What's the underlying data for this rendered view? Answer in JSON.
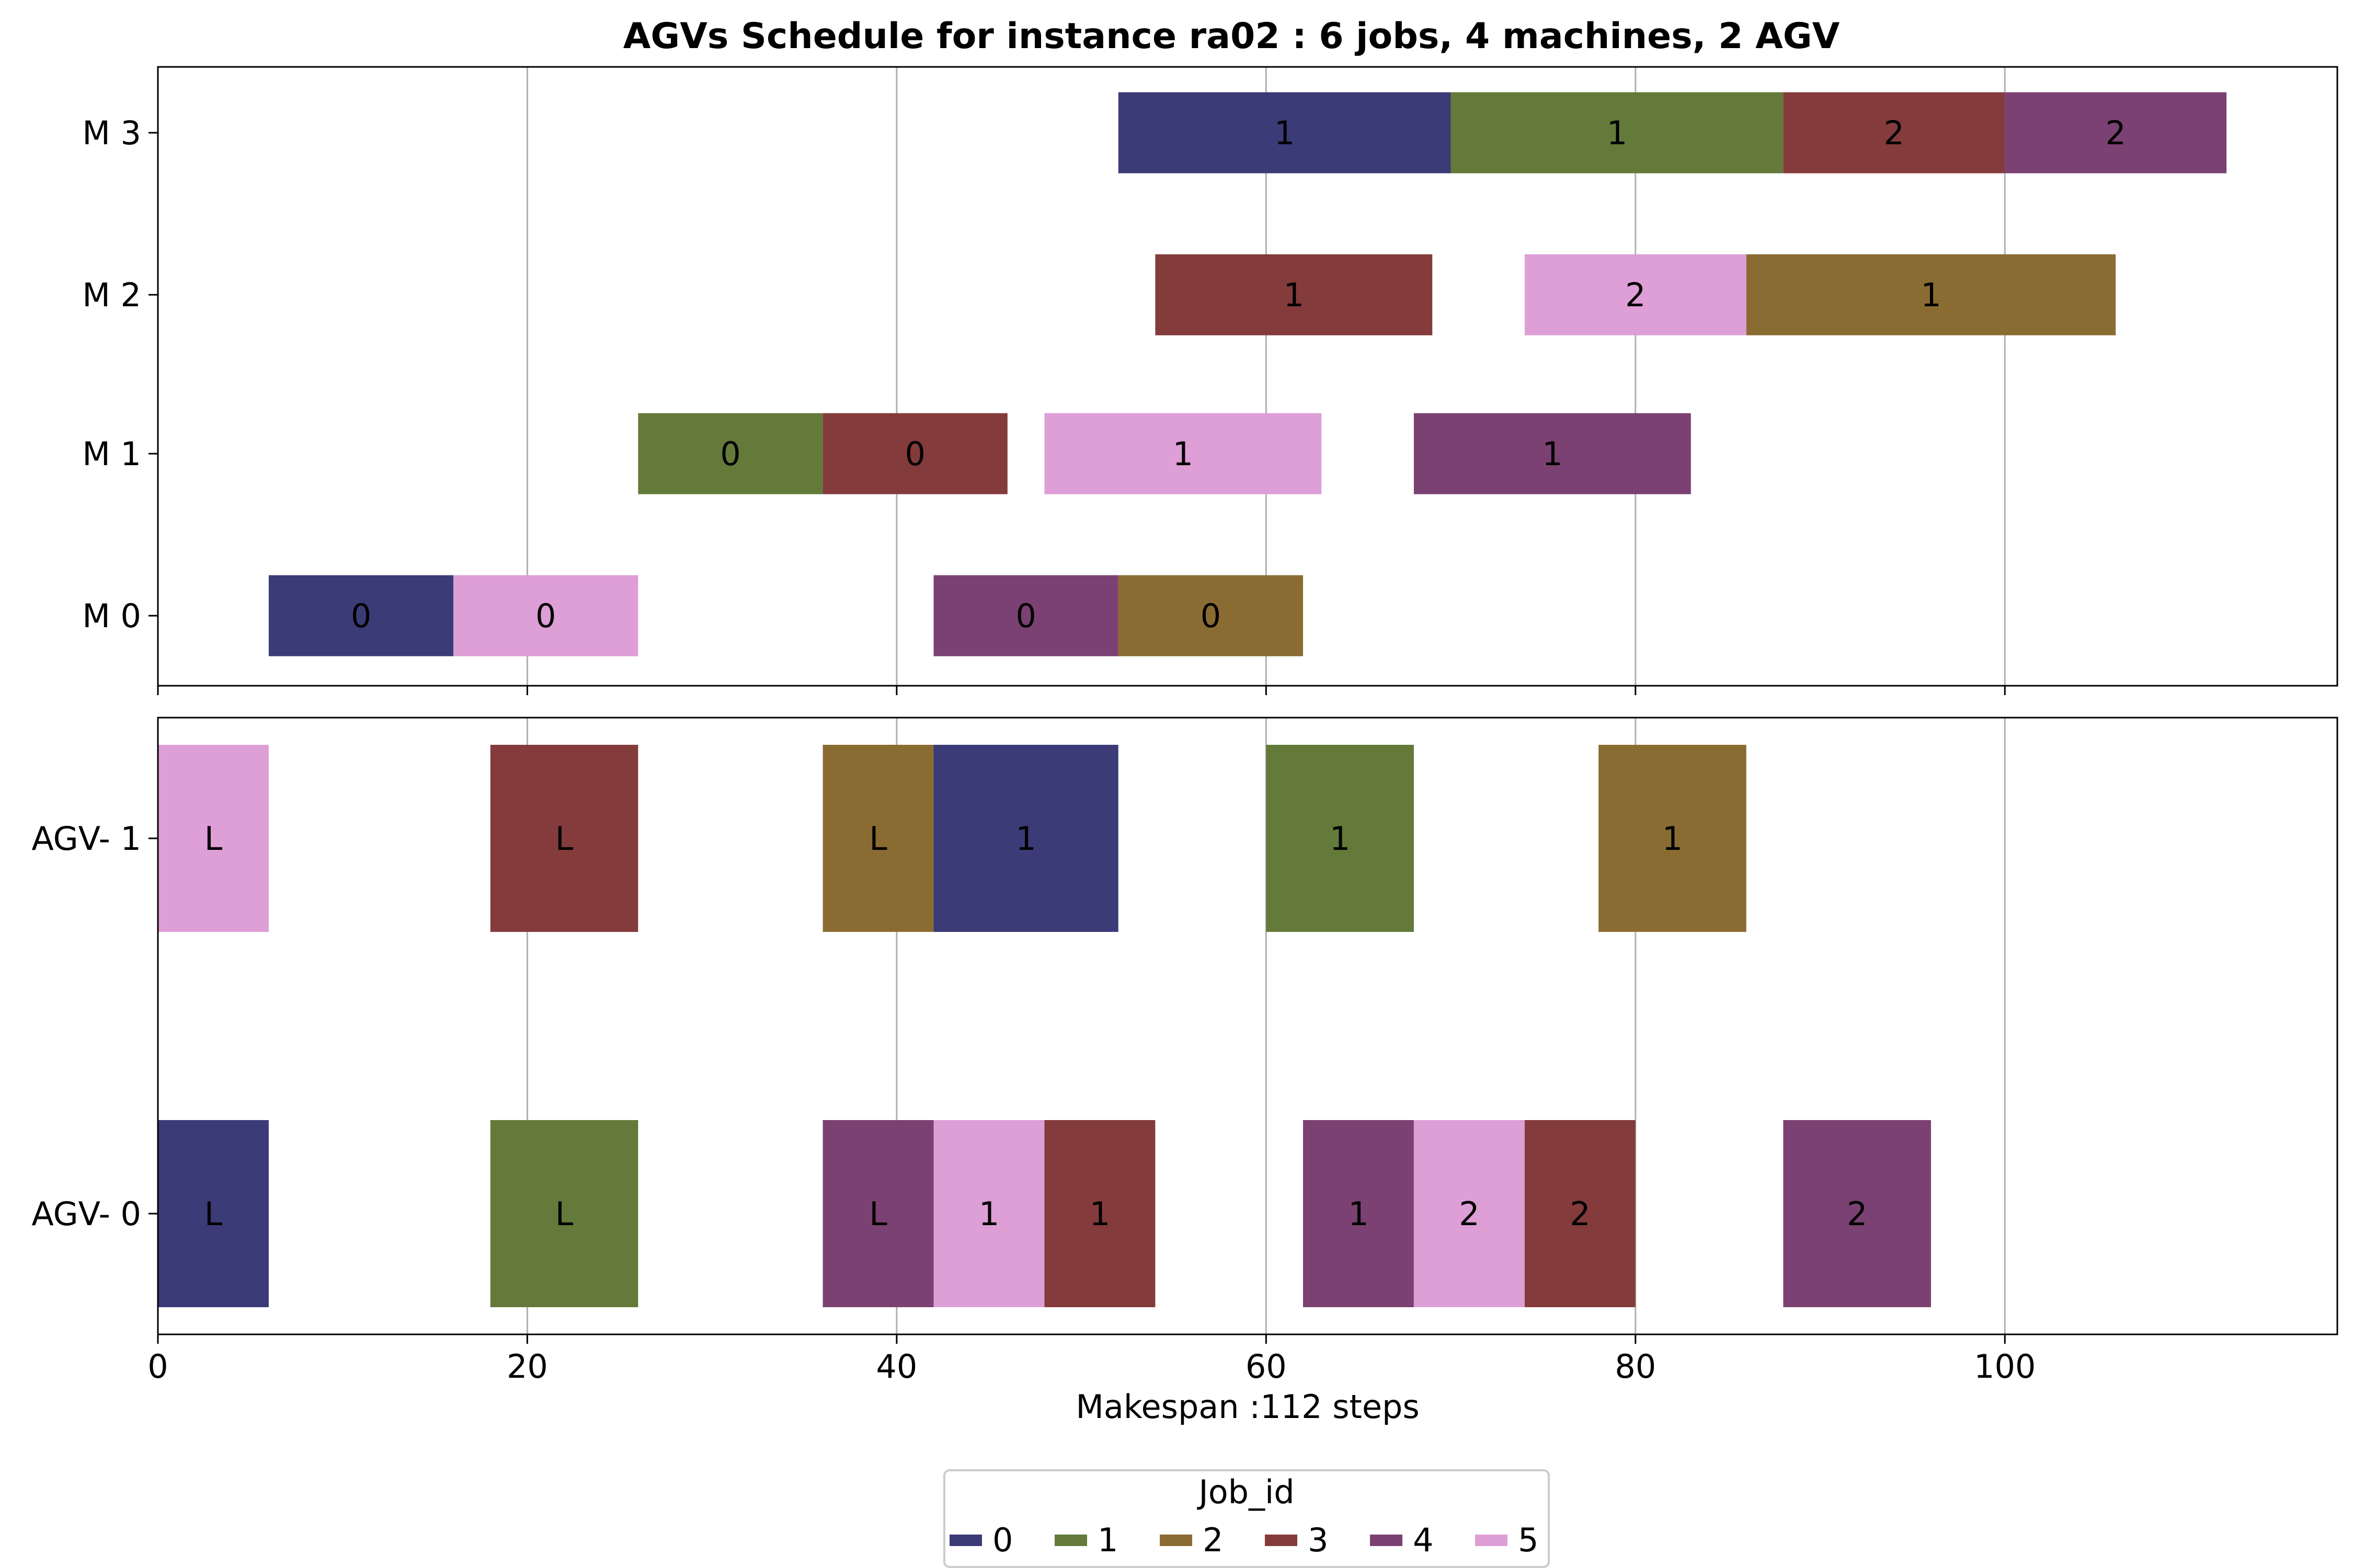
{
  "chart_data": {
    "type": "gantt",
    "title": "AGVs Schedule for instance ra02  : 6 jobs, 4 machines, 2 AGV",
    "xlabel": "Makespan :112 steps",
    "xlim": [
      0,
      118
    ],
    "xticks": [
      0,
      20,
      40,
      60,
      80,
      100
    ],
    "grid": "vertical",
    "colors": {
      "0": "#3b3b78",
      "1": "#637a3a",
      "2": "#8a6c33",
      "3": "#843b3b",
      "4": "#7b4172",
      "5": "#de9ed6"
    },
    "legend": {
      "title": "Job_id",
      "placement": "bottom-center",
      "entries": [
        "0",
        "1",
        "2",
        "3",
        "4",
        "5"
      ]
    },
    "machines_panel": {
      "rows": [
        "M 0",
        "M 1",
        "M 2",
        "M 3"
      ],
      "tasks": [
        {
          "row": "M 0",
          "job": 0,
          "start": 6,
          "end": 16,
          "label": "0"
        },
        {
          "row": "M 0",
          "job": 5,
          "start": 16,
          "end": 26,
          "label": "0"
        },
        {
          "row": "M 0",
          "job": 4,
          "start": 42,
          "end": 52,
          "label": "0"
        },
        {
          "row": "M 0",
          "job": 2,
          "start": 52,
          "end": 62,
          "label": "0"
        },
        {
          "row": "M 1",
          "job": 1,
          "start": 26,
          "end": 36,
          "label": "0"
        },
        {
          "row": "M 1",
          "job": 3,
          "start": 36,
          "end": 46,
          "label": "0"
        },
        {
          "row": "M 1",
          "job": 5,
          "start": 48,
          "end": 63,
          "label": "1"
        },
        {
          "row": "M 1",
          "job": 4,
          "start": 68,
          "end": 83,
          "label": "1"
        },
        {
          "row": "M 2",
          "job": 3,
          "start": 54,
          "end": 69,
          "label": "1"
        },
        {
          "row": "M 2",
          "job": 5,
          "start": 74,
          "end": 86,
          "label": "2"
        },
        {
          "row": "M 2",
          "job": 2,
          "start": 86,
          "end": 106,
          "label": "1"
        },
        {
          "row": "M 3",
          "job": 0,
          "start": 52,
          "end": 70,
          "label": "1"
        },
        {
          "row": "M 3",
          "job": 1,
          "start": 70,
          "end": 88,
          "label": "1"
        },
        {
          "row": "M 3",
          "job": 3,
          "start": 88,
          "end": 100,
          "label": "2"
        },
        {
          "row": "M 3",
          "job": 4,
          "start": 100,
          "end": 112,
          "label": "2"
        }
      ]
    },
    "agv_panel": {
      "rows": [
        "AGV- 0",
        "AGV- 1"
      ],
      "tasks": [
        {
          "row": "AGV- 1",
          "job": 5,
          "start": 0,
          "end": 6,
          "label": "L"
        },
        {
          "row": "AGV- 1",
          "job": 3,
          "start": 18,
          "end": 26,
          "label": "L"
        },
        {
          "row": "AGV- 1",
          "job": 2,
          "start": 36,
          "end": 42,
          "label": "L"
        },
        {
          "row": "AGV- 1",
          "job": 0,
          "start": 42,
          "end": 52,
          "label": "1"
        },
        {
          "row": "AGV- 1",
          "job": 1,
          "start": 60,
          "end": 68,
          "label": "1"
        },
        {
          "row": "AGV- 1",
          "job": 2,
          "start": 78,
          "end": 86,
          "label": "1"
        },
        {
          "row": "AGV- 0",
          "job": 0,
          "start": 0,
          "end": 6,
          "label": "L"
        },
        {
          "row": "AGV- 0",
          "job": 1,
          "start": 18,
          "end": 26,
          "label": "L"
        },
        {
          "row": "AGV- 0",
          "job": 4,
          "start": 36,
          "end": 42,
          "label": "L"
        },
        {
          "row": "AGV- 0",
          "job": 5,
          "start": 42,
          "end": 48,
          "label": "1"
        },
        {
          "row": "AGV- 0",
          "job": 3,
          "start": 48,
          "end": 54,
          "label": "1"
        },
        {
          "row": "AGV- 0",
          "job": 4,
          "start": 62,
          "end": 68,
          "label": "1"
        },
        {
          "row": "AGV- 0",
          "job": 5,
          "start": 68,
          "end": 74,
          "label": "2"
        },
        {
          "row": "AGV- 0",
          "job": 3,
          "start": 74,
          "end": 80,
          "label": "2"
        },
        {
          "row": "AGV- 0",
          "job": 4,
          "start": 88,
          "end": 96,
          "label": "2"
        }
      ]
    }
  }
}
